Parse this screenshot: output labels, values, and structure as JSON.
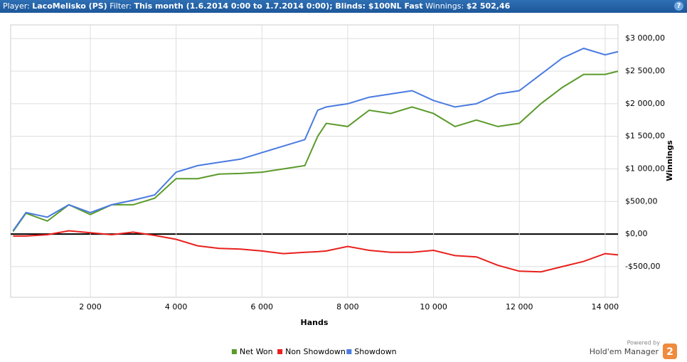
{
  "header": {
    "player_label": "Player:",
    "player": "LacoMelisko (PS)",
    "filter_label": "Filter:",
    "filter": "This month (1.6.2014 0:00 to 1.7.2014 0:00); Blinds: $100NL Fast",
    "winnings_label": "Winnings:",
    "winnings": "$2 502,46",
    "help": "?"
  },
  "branding": {
    "powered_by": "Powered by",
    "product": "Hold'em Manager",
    "badge": "2"
  },
  "chart_data": {
    "type": "line",
    "x_label": "Hands",
    "y_label": "Winnings",
    "x": [
      200,
      500,
      1000,
      1500,
      2000,
      2500,
      3000,
      3500,
      4000,
      4500,
      5000,
      5500,
      6000,
      6500,
      7000,
      7300,
      7500,
      8000,
      8500,
      9000,
      9500,
      10000,
      10500,
      11000,
      11500,
      12000,
      12500,
      13000,
      13500,
      14000,
      14300
    ],
    "series": [
      {
        "name": "Net Won",
        "color": "#5a9a2a",
        "values": [
          40,
          320,
          200,
          450,
          300,
          450,
          450,
          550,
          850,
          850,
          920,
          930,
          950,
          1000,
          1050,
          1500,
          1700,
          1650,
          1900,
          1850,
          1950,
          1850,
          1650,
          1750,
          1650,
          1700,
          2000,
          2250,
          2450,
          2450,
          2500
        ]
      },
      {
        "name": "Non Showdown",
        "color": "#e8201c",
        "values": [
          -30,
          -30,
          -10,
          50,
          20,
          -10,
          30,
          -20,
          -80,
          -180,
          -220,
          -230,
          -260,
          -300,
          -280,
          -270,
          -260,
          -190,
          -250,
          -280,
          -280,
          -250,
          -330,
          -350,
          -480,
          -570,
          -580,
          -500,
          -420,
          -300,
          -320
        ]
      },
      {
        "name": "Showdown",
        "color": "#4a7be0",
        "values": [
          50,
          330,
          260,
          450,
          330,
          450,
          520,
          600,
          950,
          1050,
          1100,
          1150,
          1250,
          1350,
          1450,
          1900,
          1950,
          2000,
          2100,
          2150,
          2200,
          2050,
          1950,
          2000,
          2150,
          2200,
          2450,
          2700,
          2850,
          2750,
          2800
        ]
      }
    ],
    "xlim": [
      144,
      14300
    ],
    "ylim": [
      -970,
      3210
    ],
    "xticks": [
      {
        "value": 2000,
        "label": "2 000"
      },
      {
        "value": 4000,
        "label": "4 000"
      },
      {
        "value": 6000,
        "label": "6 000"
      },
      {
        "value": 8000,
        "label": "8 000"
      },
      {
        "value": 10000,
        "label": "10 000"
      },
      {
        "value": 12000,
        "label": "12 000"
      },
      {
        "value": 14000,
        "label": "14 000"
      }
    ],
    "yticks": [
      {
        "value": -500,
        "label": "-$500,00"
      },
      {
        "value": 0,
        "label": "$0,00"
      },
      {
        "value": 500,
        "label": "$500,00"
      },
      {
        "value": 1000,
        "label": "$1 000,00"
      },
      {
        "value": 1500,
        "label": "$1 500,00"
      },
      {
        "value": 2000,
        "label": "$2 000,00"
      },
      {
        "value": 2500,
        "label": "$2 500,00"
      },
      {
        "value": 3000,
        "label": "$3 000,00"
      }
    ],
    "grid": true,
    "legend": "bottom"
  }
}
